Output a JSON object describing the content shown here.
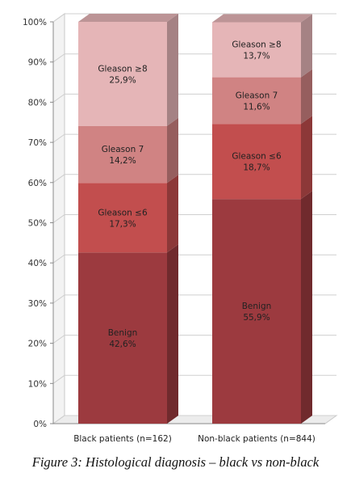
{
  "caption": "Figure 3: Histological diagnosis – black vs non-black",
  "chart_data": {
    "type": "bar",
    "stacked": true,
    "percent": true,
    "three_d": true,
    "categories": [
      "Black patients (n=162)",
      "Non-black patients (n=844)"
    ],
    "series": [
      {
        "name": "Benign",
        "values": [
          42.6,
          55.9
        ],
        "labels": [
          "42,6%",
          "55,9%"
        ],
        "color": "#9c3a3f"
      },
      {
        "name": "Gleason ≤6",
        "values": [
          17.3,
          18.7
        ],
        "labels": [
          "17,3%",
          "18,7%"
        ],
        "color": "#c24e4e"
      },
      {
        "name": "Gleason 7",
        "values": [
          14.2,
          11.6
        ],
        "labels": [
          "14,2%",
          "11,6%"
        ],
        "color": "#d08383"
      },
      {
        "name": "Gleason ≥8",
        "values": [
          25.9,
          13.7
        ],
        "labels": [
          "25,9%",
          "13,7%"
        ],
        "color": "#e5b5b7"
      }
    ],
    "ylim": [
      0,
      100
    ],
    "yticks": [
      "0%",
      "10%",
      "20%",
      "30%",
      "40%",
      "50%",
      "60%",
      "70%",
      "80%",
      "90%",
      "100%"
    ],
    "grid": true,
    "legend": "none"
  }
}
